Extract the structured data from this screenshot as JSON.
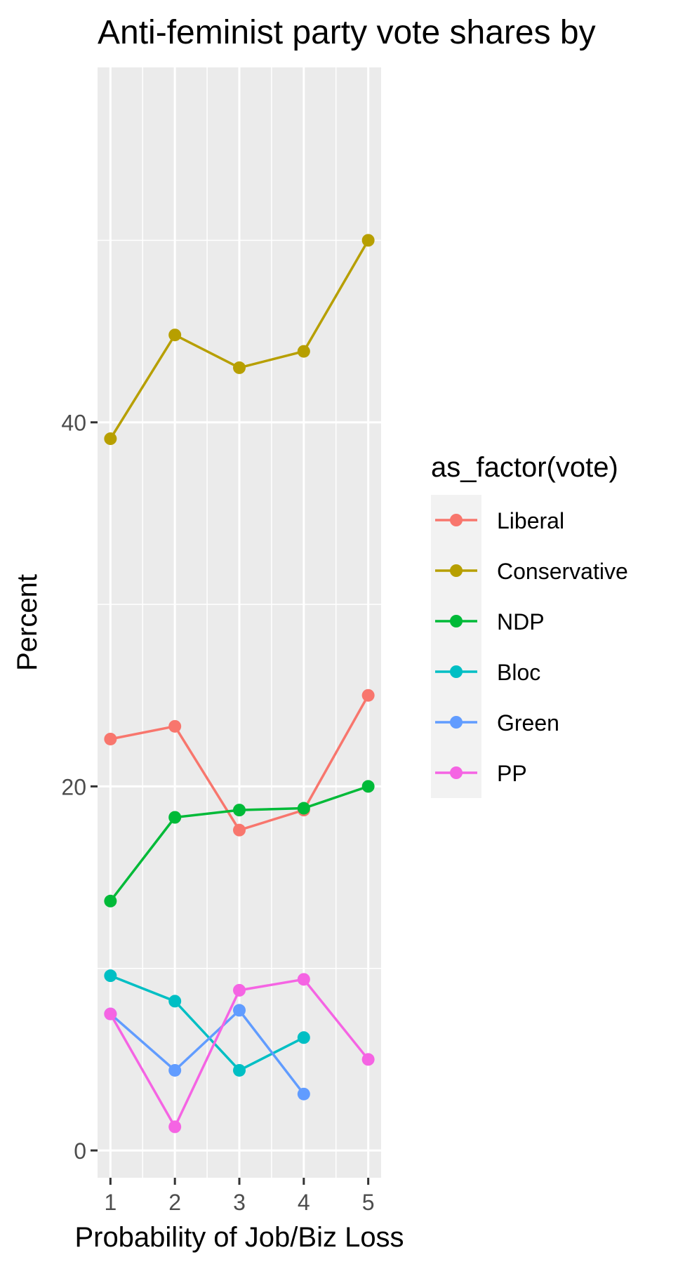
{
  "chart_data": {
    "type": "line",
    "title": "Anti-feminist party vote shares by",
    "xlabel": "Probability of Job/Biz Loss",
    "ylabel": "Percent",
    "x": [
      1,
      2,
      3,
      4,
      5
    ],
    "x_ticks": [
      "1",
      "2",
      "3",
      "4",
      "5"
    ],
    "y_ticks": [
      "0",
      "20",
      "40"
    ],
    "y_tick_values": [
      0,
      20,
      40
    ],
    "xlim": [
      0.8,
      5.2
    ],
    "ylim": [
      -1.5,
      59.5
    ],
    "grid": true,
    "legend": {
      "title": "as_factor(vote)",
      "placement": "right"
    },
    "series": [
      {
        "name": "Liberal",
        "color": "#F8766D",
        "values": [
          22.6,
          23.3,
          17.6,
          18.7,
          25.0
        ]
      },
      {
        "name": "Conservative",
        "color": "#B79F00",
        "values": [
          39.1,
          44.8,
          43.0,
          43.9,
          50.0
        ]
      },
      {
        "name": "NDP",
        "color": "#00BA38",
        "values": [
          13.7,
          18.3,
          18.7,
          18.8,
          20.0
        ]
      },
      {
        "name": "Bloc",
        "color": "#00BFC4",
        "values": [
          9.6,
          8.2,
          4.4,
          6.2,
          null
        ]
      },
      {
        "name": "Green",
        "color": "#619CFF",
        "values": [
          7.5,
          4.4,
          7.7,
          3.1,
          null
        ]
      },
      {
        "name": "PP",
        "color": "#F564E3",
        "values": [
          7.5,
          1.3,
          8.8,
          9.4,
          5.0
        ]
      }
    ]
  }
}
